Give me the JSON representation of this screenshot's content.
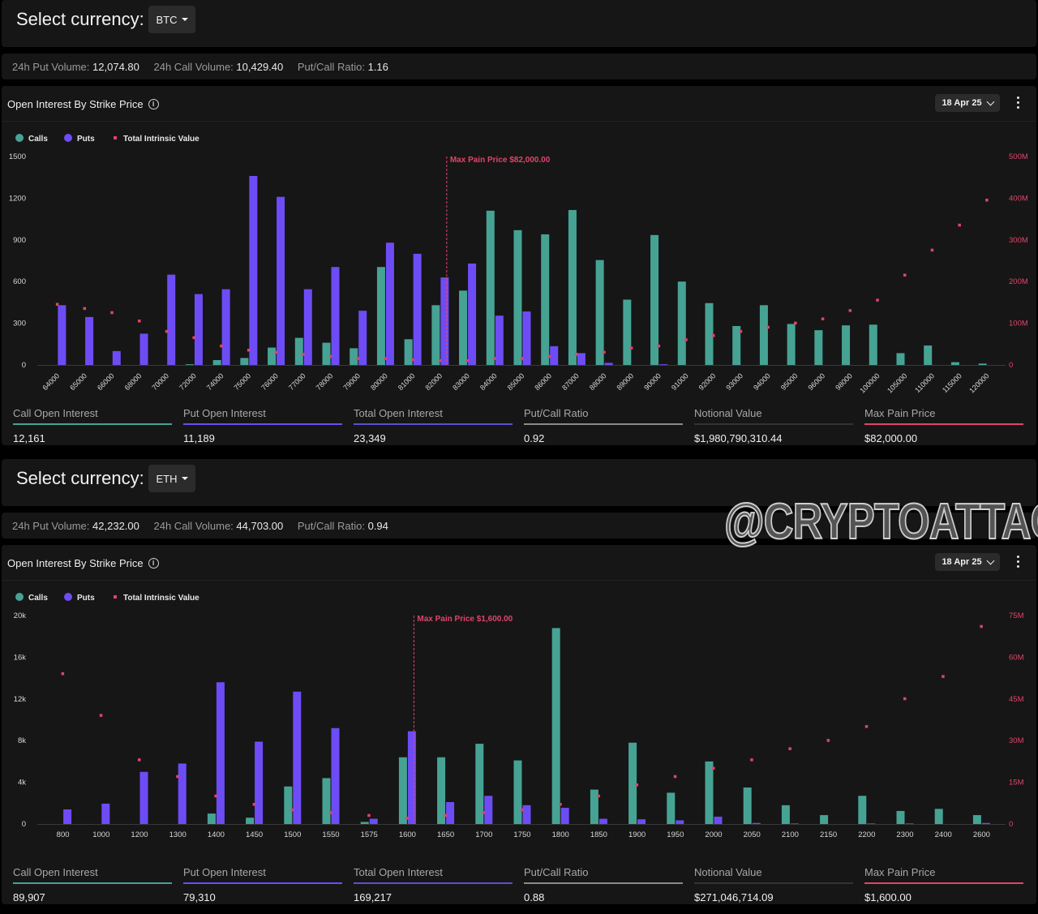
{
  "colors": {
    "calls": "#46a394",
    "puts": "#6e4cf5",
    "intrinsic": "#e0456a",
    "grid": "#2a2a2a",
    "axis": "#d8d8d8"
  },
  "legend": {
    "calls": "Calls",
    "puts": "Puts",
    "intrinsic": "Total Intrinsic Value"
  },
  "panels": [
    {
      "currency_label": "Select currency:",
      "currency": "BTC",
      "put_volume_label": "24h Put Volume:",
      "put_volume": "12,074.80",
      "call_volume_label": "24h Call Volume:",
      "call_volume": "10,429.40",
      "ratio_label": "Put/Call Ratio:",
      "ratio": "1.16",
      "chart_title": "Open Interest By Strike Price",
      "expiry": "18 Apr 25",
      "stats": [
        {
          "label": "Call Open Interest",
          "value": "12,161",
          "color": "#46a394"
        },
        {
          "label": "Put Open Interest",
          "value": "11,189",
          "color": "#6e4cf5"
        },
        {
          "label": "Total Open Interest",
          "value": "23,349",
          "color": "#5a4fd0"
        },
        {
          "label": "Put/Call Ratio",
          "value": "0.92",
          "color": "#8a8a8a"
        },
        {
          "label": "Notional Value",
          "value": "$1,980,790,310.44",
          "color": "#333333"
        },
        {
          "label": "Max Pain Price",
          "value": "$82,000.00",
          "color": "#e0456a"
        }
      ]
    },
    {
      "currency_label": "Select currency:",
      "currency": "ETH",
      "put_volume_label": "24h Put Volume:",
      "put_volume": "42,232.00",
      "call_volume_label": "24h Call Volume:",
      "call_volume": "44,703.00",
      "ratio_label": "Put/Call Ratio:",
      "ratio": "0.94",
      "chart_title": "Open Interest By Strike Price",
      "expiry": "18 Apr 25",
      "stats": [
        {
          "label": "Call Open Interest",
          "value": "89,907",
          "color": "#46a394"
        },
        {
          "label": "Put Open Interest",
          "value": "79,310",
          "color": "#6e4cf5"
        },
        {
          "label": "Total Open Interest",
          "value": "169,217",
          "color": "#5a4fd0"
        },
        {
          "label": "Put/Call Ratio",
          "value": "0.88",
          "color": "#8a8a8a"
        },
        {
          "label": "Notional Value",
          "value": "$271,046,714.09",
          "color": "#333333"
        },
        {
          "label": "Max Pain Price",
          "value": "$1,600.00",
          "color": "#e0456a"
        }
      ]
    }
  ],
  "watermark": "@CRYPTOATTACK",
  "chart_data": [
    {
      "type": "bar",
      "title": "Open Interest By Strike Price",
      "categories": [
        "64000",
        "65000",
        "66000",
        "68000",
        "70000",
        "72000",
        "74000",
        "75000",
        "76000",
        "77000",
        "78000",
        "79000",
        "80000",
        "81000",
        "82000",
        "83000",
        "84000",
        "85000",
        "86000",
        "87000",
        "88000",
        "89000",
        "90000",
        "91000",
        "92000",
        "93000",
        "94000",
        "95000",
        "96000",
        "98000",
        "100000",
        "105000",
        "110000",
        "115000",
        "120000"
      ],
      "series": [
        {
          "name": "Calls",
          "values": [
            0,
            0,
            0,
            0,
            0,
            5,
            35,
            50,
            125,
            195,
            160,
            120,
            705,
            185,
            430,
            535,
            1110,
            970,
            940,
            1115,
            755,
            470,
            935,
            600,
            445,
            280,
            430,
            295,
            250,
            285,
            290,
            85,
            140,
            20,
            10
          ]
        },
        {
          "name": "Puts",
          "values": [
            430,
            345,
            100,
            225,
            650,
            510,
            545,
            1360,
            1210,
            545,
            705,
            390,
            880,
            800,
            630,
            730,
            355,
            385,
            135,
            85,
            15,
            0,
            5,
            0,
            0,
            0,
            0,
            0,
            0,
            0,
            0,
            0,
            0,
            0,
            0
          ]
        },
        {
          "name": "Total Intrinsic Value",
          "axis": "right",
          "values": [
            145,
            135,
            125,
            105,
            80,
            65,
            45,
            35,
            30,
            25,
            20,
            15,
            15,
            12,
            10,
            10,
            15,
            15,
            20,
            25,
            30,
            40,
            45,
            60,
            70,
            80,
            90,
            100,
            110,
            130,
            155,
            215,
            275,
            335,
            395
          ]
        }
      ],
      "ylim": [
        0,
        1500
      ],
      "yticks": [
        "0",
        "300",
        "600",
        "900",
        "1200",
        "1500"
      ],
      "y2lim": [
        0,
        500
      ],
      "y2ticks": [
        "0",
        "100M",
        "200M",
        "300M",
        "400M",
        "500M"
      ],
      "max_pain_index": 14,
      "max_pain_label": "Max Pain Price $82,000.00",
      "rotate_xticks": true,
      "grid": false,
      "legend": "top-left"
    },
    {
      "type": "bar",
      "title": "Open Interest By Strike Price",
      "categories": [
        "800",
        "1000",
        "1200",
        "1300",
        "1400",
        "1450",
        "1500",
        "1550",
        "1575",
        "1600",
        "1650",
        "1700",
        "1750",
        "1800",
        "1850",
        "1900",
        "1950",
        "2000",
        "2050",
        "2100",
        "2150",
        "2200",
        "2300",
        "2400",
        "2600"
      ],
      "series": [
        {
          "name": "Calls",
          "values": [
            0,
            0,
            0,
            0,
            1000,
            600,
            3600,
            4400,
            200,
            6400,
            6400,
            7700,
            6100,
            18800,
            3300,
            7800,
            3000,
            6000,
            3500,
            1800,
            850,
            2700,
            1250,
            1450,
            850
          ]
        },
        {
          "name": "Puts",
          "values": [
            1400,
            1950,
            5000,
            5800,
            13600,
            7900,
            12700,
            9200,
            500,
            8900,
            2100,
            2700,
            1800,
            1550,
            500,
            450,
            350,
            700,
            100,
            50,
            0,
            50,
            50,
            0,
            100
          ]
        },
        {
          "name": "Total Intrinsic Value",
          "axis": "right",
          "values": [
            54,
            39,
            23,
            17,
            10,
            7,
            5,
            4,
            3,
            2,
            3,
            4,
            5,
            7,
            10,
            14,
            17,
            20,
            23,
            27,
            30,
            35,
            45,
            53,
            71
          ]
        }
      ],
      "ylim": [
        0,
        20000
      ],
      "yticks": [
        "0",
        "4k",
        "8k",
        "12k",
        "16k",
        "20k"
      ],
      "y2lim": [
        0,
        75
      ],
      "y2ticks": [
        "0",
        "15M",
        "30M",
        "45M",
        "60M",
        "75M"
      ],
      "max_pain_index": 9,
      "max_pain_label": "Max Pain Price $1,600.00",
      "rotate_xticks": false,
      "grid": false,
      "legend": "top-left"
    }
  ]
}
